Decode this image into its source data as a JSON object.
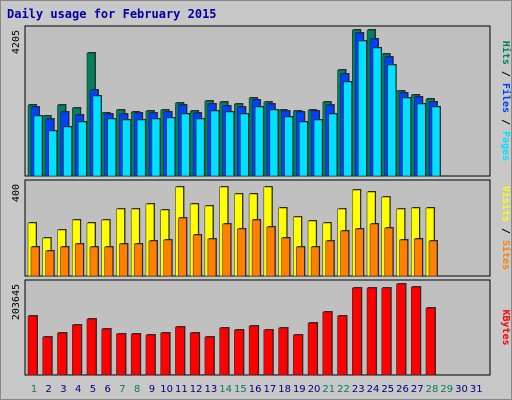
{
  "title": "Daily usage for February 2015",
  "colors": {
    "background": "#c8c8c8",
    "plot_bg": "#c0c0c0",
    "hits": "#00805c",
    "files": "#0040ff",
    "pages": "#00e0ff",
    "visits": "#ffff00",
    "sites": "#ff8000",
    "kbytes": "#ff0000",
    "weekday_label": "#000080",
    "weekend_label": "#00805c"
  },
  "chart_data": [
    {
      "type": "bar",
      "name": "hits-files-pages",
      "max_label": "4205",
      "ylim": [
        0,
        4205
      ],
      "side_labels": [
        {
          "text": "Hits",
          "color": "#00805c"
        },
        {
          "text": " / ",
          "color": "#000000"
        },
        {
          "text": "Files",
          "color": "#0040ff"
        },
        {
          "text": " / ",
          "color": "#000000"
        },
        {
          "text": "Pages",
          "color": "#00e0ff"
        }
      ],
      "series": [
        {
          "name": "Hits",
          "values": [
            2050,
            1720,
            2050,
            1950,
            3550,
            1820,
            1900,
            1850,
            1880,
            1900,
            2100,
            1880,
            2150,
            2130,
            2080,
            2250,
            2130,
            1900,
            1880,
            1900,
            2130,
            3050,
            4205,
            4205,
            3520,
            2450,
            2330,
            2230
          ]
        },
        {
          "name": "Files",
          "values": [
            2000,
            1650,
            1850,
            1750,
            2470,
            1780,
            1780,
            1820,
            1820,
            1850,
            2050,
            1820,
            2080,
            2030,
            1980,
            2200,
            2080,
            1880,
            1850,
            1860,
            2050,
            2950,
            4120,
            3950,
            3420,
            2400,
            2280,
            2130
          ]
        },
        {
          "name": "Pages",
          "values": [
            1720,
            1300,
            1420,
            1550,
            2300,
            1650,
            1620,
            1600,
            1650,
            1680,
            1780,
            1650,
            1880,
            1850,
            1780,
            2000,
            1900,
            1700,
            1550,
            1620,
            1780,
            2700,
            3900,
            3700,
            3200,
            2250,
            2080,
            1980
          ]
        }
      ]
    },
    {
      "type": "bar",
      "name": "visits-sites",
      "max_label": "400",
      "ylim": [
        0,
        400
      ],
      "side_labels": [
        {
          "text": "Visits",
          "color": "#ffff00"
        },
        {
          "text": " / ",
          "color": "#000000"
        },
        {
          "text": "Sites",
          "color": "#ff8000"
        }
      ],
      "series": [
        {
          "name": "Visits",
          "values": [
            230,
            165,
            200,
            245,
            230,
            245,
            290,
            290,
            315,
            285,
            385,
            315,
            305,
            385,
            355,
            355,
            385,
            295,
            255,
            240,
            230,
            290,
            375,
            365,
            345,
            290,
            295,
            295
          ]
        },
        {
          "name": "Sites",
          "values": [
            125,
            110,
            125,
            140,
            125,
            125,
            140,
            140,
            150,
            155,
            250,
            180,
            160,
            225,
            205,
            245,
            215,
            165,
            125,
            125,
            150,
            195,
            205,
            225,
            210,
            155,
            160,
            150
          ]
        }
      ]
    },
    {
      "type": "bar",
      "name": "kbytes",
      "max_label": "203645",
      "ylim": [
        0,
        203645
      ],
      "side_labels": [
        {
          "text": "KBytes",
          "color": "#ff0000"
        }
      ],
      "series": [
        {
          "name": "KBytes",
          "values": [
            131000,
            86000,
            93000,
            113000,
            126000,
            102000,
            92000,
            92000,
            90000,
            94000,
            108000,
            93000,
            86000,
            105000,
            101000,
            109000,
            100000,
            106000,
            89000,
            117000,
            141000,
            131000,
            195000,
            195000,
            195000,
            203645,
            197000,
            151000
          ]
        }
      ]
    }
  ],
  "x_axis": {
    "days": [
      "1",
      "2",
      "3",
      "4",
      "5",
      "6",
      "7",
      "8",
      "9",
      "10",
      "11",
      "12",
      "13",
      "14",
      "15",
      "16",
      "17",
      "18",
      "19",
      "20",
      "21",
      "22",
      "23",
      "24",
      "25",
      "26",
      "27",
      "28",
      "29",
      "30",
      "31"
    ],
    "weekend_days": [
      1,
      7,
      8,
      14,
      15,
      21,
      22,
      28,
      29
    ]
  }
}
